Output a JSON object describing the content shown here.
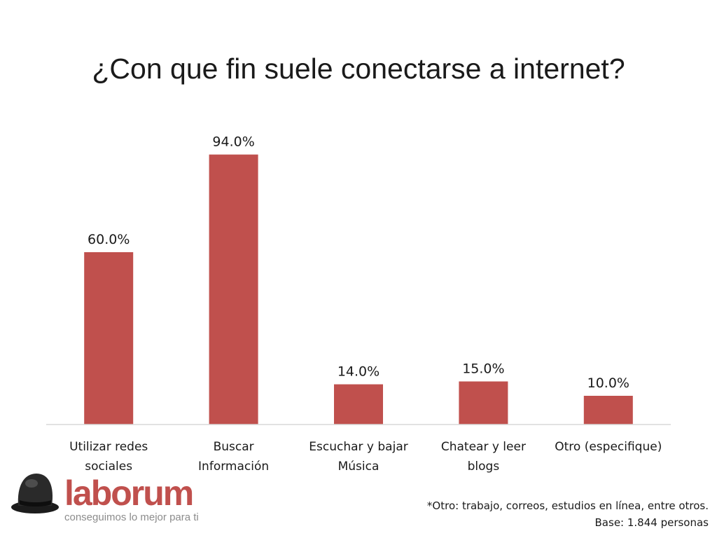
{
  "chart_data": {
    "type": "bar",
    "title": "¿Con que fin suele conectarse a internet?",
    "categories": [
      [
        "Utilizar redes",
        "sociales"
      ],
      [
        "Buscar",
        "Información"
      ],
      [
        "Escuchar y bajar",
        "Música"
      ],
      [
        "Chatear y leer",
        "blogs"
      ],
      [
        "Otro (especifique)"
      ]
    ],
    "values": [
      60.0,
      94.0,
      14.0,
      15.0,
      10.0
    ],
    "data_labels": [
      "60.0%",
      "94.0%",
      "14.0%",
      "15.0%",
      "10.0%"
    ],
    "xlabel": "",
    "ylabel": "",
    "ylim": [
      0,
      100
    ],
    "grid": false,
    "bar_color": "#c0504d"
  },
  "logo": {
    "icon": "bowler-hat-icon",
    "wordmark": "laborum",
    "tagline": "conseguimos lo mejor para ti",
    "color": "#c0504d"
  },
  "footnote": {
    "note": "*Otro: trabajo, correos, estudios en línea, entre otros.",
    "base": "Base: 1.844 personas"
  }
}
